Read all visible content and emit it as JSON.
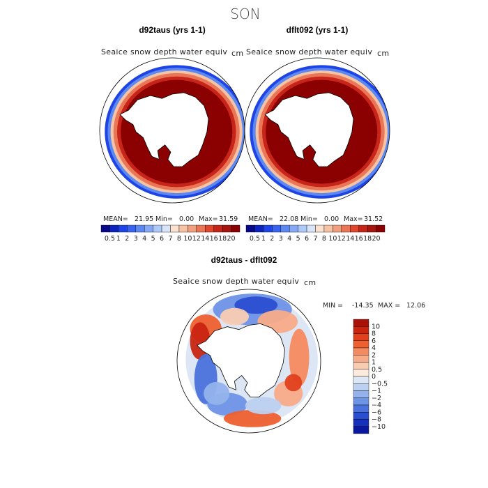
{
  "figure": {
    "season": "SON",
    "colors": {
      "ocean": "#ffffff",
      "land": "#ffffff",
      "ice_full": "#8b0000",
      "outline": "#000000"
    }
  },
  "chart_data": [
    {
      "type": "heatmap",
      "title": "d92taus (yrs 1-1)",
      "variable": "Seaice snow depth water equiv",
      "units": "cm",
      "stats": {
        "mean_label": "MEAN=",
        "mean": "21.95",
        "min_label": "Min=",
        "min": "0.00",
        "max_label": "Max=",
        "max": "31.59"
      },
      "colorbar_labels": [
        "0.5",
        "1",
        "2",
        "3",
        "4",
        "5",
        "6",
        "7",
        "8",
        "10",
        "12",
        "14",
        "16",
        "18",
        "20"
      ],
      "colorbar_colors": [
        "#08088a",
        "#0b24c0",
        "#1f44e6",
        "#3a64f0",
        "#5c88f2",
        "#84a8f5",
        "#aec8f7",
        "#d8e4f8",
        "#fbe1cf",
        "#f6c3a5",
        "#f19f7e",
        "#ea7658",
        "#e0472d",
        "#c8251a",
        "#a8140f",
        "#8b0000"
      ]
    },
    {
      "type": "heatmap",
      "title": "dflt092 (yrs 1-1)",
      "variable": "Seaice snow depth water equiv",
      "units": "cm",
      "stats": {
        "mean_label": "MEAN=",
        "mean": "22.08",
        "min_label": "Min=",
        "min": "0.00",
        "max_label": "Max=",
        "max": "31.52"
      },
      "colorbar_labels": [
        "0.5",
        "1",
        "2",
        "3",
        "4",
        "5",
        "6",
        "7",
        "8",
        "10",
        "12",
        "14",
        "16",
        "18",
        "20"
      ],
      "colorbar_colors": [
        "#08088a",
        "#0b24c0",
        "#1f44e6",
        "#3a64f0",
        "#5c88f2",
        "#84a8f5",
        "#aec8f7",
        "#d8e4f8",
        "#fbe1cf",
        "#f6c3a5",
        "#f19f7e",
        "#ea7658",
        "#e0472d",
        "#c8251a",
        "#a8140f",
        "#8b0000"
      ]
    },
    {
      "type": "heatmap",
      "title": "d92taus - dflt092",
      "variable": "Seaice snow depth water equiv",
      "units": "cm",
      "stats": {
        "min_label": "MIN =",
        "min": "-14.35",
        "max_label": "MAX =",
        "max": "12.06"
      },
      "colorbar_labels": [
        "10",
        "8",
        "6",
        "4",
        "2",
        "1",
        "0.5",
        "0",
        "−0.5",
        "−1",
        "−2",
        "−4",
        "−6",
        "−8",
        "−10"
      ],
      "colorbar_colors": [
        "#a81208",
        "#c82410",
        "#e0401c",
        "#ee6030",
        "#f48a60",
        "#f7ab88",
        "#f9ccb2",
        "#fcebdc",
        "#dde6f4",
        "#bcd0f0",
        "#94b3ec",
        "#6e94e6",
        "#4a72dc",
        "#2a4ed0",
        "#1630bc",
        "#0a18a0"
      ]
    }
  ]
}
